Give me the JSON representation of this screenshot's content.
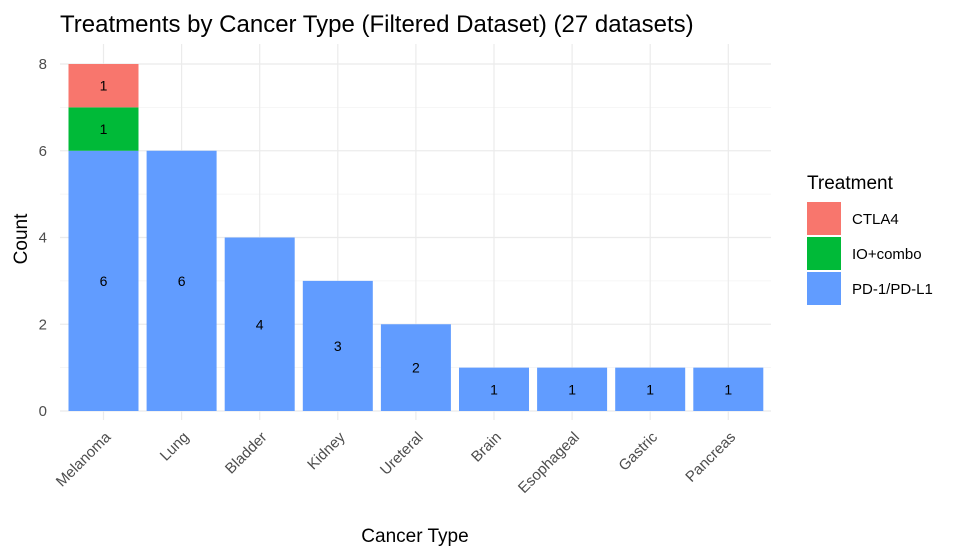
{
  "chart_data": {
    "type": "bar",
    "stacked": true,
    "title": "Treatments by Cancer Type (Filtered Dataset) (27 datasets)",
    "xlabel": "Cancer Type",
    "ylabel": "Count",
    "ylim": [
      0,
      8
    ],
    "yticks": [
      "0",
      "2",
      "4",
      "6",
      "8"
    ],
    "categories": [
      "Melanoma",
      "Lung",
      "Bladder",
      "Kidney",
      "Ureteral",
      "Brain",
      "Esophageal",
      "Gastric",
      "Pancreas"
    ],
    "series": [
      {
        "name": "PD-1/PD-L1",
        "color": "#619CFF",
        "values": [
          6,
          6,
          4,
          3,
          2,
          1,
          1,
          1,
          1
        ]
      },
      {
        "name": "IO+combo",
        "color": "#00BA38",
        "values": [
          1,
          0,
          0,
          0,
          0,
          0,
          0,
          0,
          0
        ]
      },
      {
        "name": "CTLA4",
        "color": "#F8766D",
        "values": [
          1,
          0,
          0,
          0,
          0,
          0,
          0,
          0,
          0
        ]
      }
    ],
    "legend": {
      "title": "Treatment",
      "position": "right",
      "entries": [
        {
          "name": "CTLA4",
          "color": "#F8766D"
        },
        {
          "name": "IO+combo",
          "color": "#00BA38"
        },
        {
          "name": "PD-1/PD-L1",
          "color": "#619CFF"
        }
      ]
    },
    "grid": true
  }
}
